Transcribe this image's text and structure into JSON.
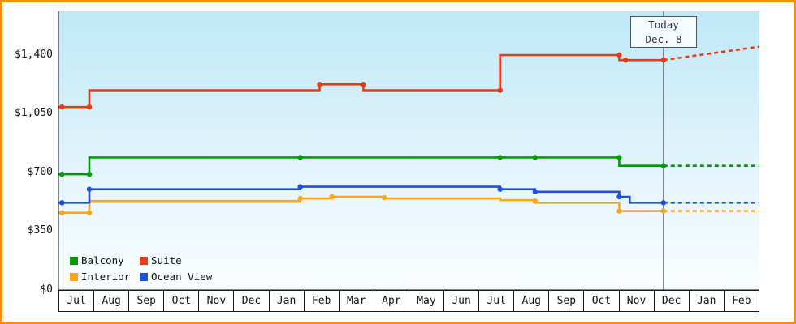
{
  "frame": {
    "border_color": "#ff8c00"
  },
  "today": {
    "line1": "Today",
    "line2": "Dec. 8"
  },
  "legend": {
    "position": "bottom-left",
    "items": [
      {
        "label": "Balcony",
        "color": "#009a00"
      },
      {
        "label": "Suite",
        "color": "#e63b17"
      },
      {
        "label": "Interior",
        "color": "#ffa41c"
      },
      {
        "label": "Ocean View",
        "color": "#1e4fe0"
      }
    ]
  },
  "chart_data": {
    "type": "line",
    "title": "",
    "xlabel": "",
    "ylabel": "",
    "grid": "off",
    "x_months": [
      "Jul",
      "Aug",
      "Sep",
      "Oct",
      "Nov",
      "Dec",
      "Jan",
      "Feb",
      "Mar",
      "Apr",
      "May",
      "Jun",
      "Jul",
      "Aug",
      "Sep",
      "Oct",
      "Nov",
      "Dec",
      "Jan",
      "Feb"
    ],
    "yticks": [
      0,
      350,
      700,
      1050,
      1400
    ],
    "ytick_labels": [
      "$0",
      "$350",
      "$700",
      "$1,050",
      "$1,400"
    ],
    "ylim": [
      0,
      1680
    ],
    "today_x": 17.26,
    "series": [
      {
        "name": "Balcony",
        "color": "#009a00",
        "solid": [
          [
            0,
            690
          ],
          [
            0.88,
            690
          ],
          [
            0.88,
            790
          ],
          [
            16.0,
            790
          ],
          [
            16.0,
            740
          ],
          [
            17.26,
            740
          ]
        ],
        "dashed": [
          [
            17.26,
            740
          ],
          [
            20,
            740
          ]
        ],
        "markers": [
          [
            0.1,
            690
          ],
          [
            0.88,
            690
          ],
          [
            6.9,
            790
          ],
          [
            12.6,
            790
          ],
          [
            13.6,
            790
          ],
          [
            16.0,
            790
          ],
          [
            17.26,
            740
          ]
        ]
      },
      {
        "name": "Suite",
        "color": "#e63b17",
        "solid": [
          [
            0,
            1090
          ],
          [
            0.88,
            1090
          ],
          [
            0.88,
            1190
          ],
          [
            7.45,
            1190
          ],
          [
            7.45,
            1225
          ],
          [
            8.7,
            1225
          ],
          [
            8.7,
            1190
          ],
          [
            12.6,
            1190
          ],
          [
            12.6,
            1400
          ],
          [
            16.0,
            1400
          ],
          [
            16.0,
            1370
          ],
          [
            17.26,
            1370
          ]
        ],
        "dashed": [
          [
            17.26,
            1370
          ],
          [
            20,
            1450
          ]
        ],
        "markers": [
          [
            0.1,
            1090
          ],
          [
            0.88,
            1090
          ],
          [
            7.45,
            1225
          ],
          [
            8.7,
            1225
          ],
          [
            12.6,
            1190
          ],
          [
            16.0,
            1400
          ],
          [
            16.18,
            1370
          ],
          [
            17.26,
            1370
          ]
        ]
      },
      {
        "name": "Interior",
        "color": "#ffa41c",
        "solid": [
          [
            0,
            460
          ],
          [
            0.88,
            460
          ],
          [
            0.88,
            530
          ],
          [
            6.9,
            530
          ],
          [
            6.9,
            545
          ],
          [
            7.8,
            545
          ],
          [
            7.8,
            555
          ],
          [
            9.3,
            555
          ],
          [
            9.3,
            545
          ],
          [
            12.6,
            545
          ],
          [
            12.6,
            535
          ],
          [
            13.6,
            535
          ],
          [
            13.6,
            520
          ],
          [
            16.0,
            520
          ],
          [
            16.0,
            470
          ],
          [
            17.26,
            470
          ]
        ],
        "dashed": [
          [
            17.26,
            470
          ],
          [
            20,
            470
          ]
        ],
        "markers": [
          [
            0.1,
            460
          ],
          [
            0.88,
            460
          ],
          [
            6.9,
            545
          ],
          [
            7.8,
            555
          ],
          [
            9.3,
            550
          ],
          [
            13.6,
            530
          ],
          [
            16.0,
            470
          ],
          [
            17.26,
            470
          ]
        ]
      },
      {
        "name": "Ocean View",
        "color": "#1e4fe0",
        "solid": [
          [
            0,
            520
          ],
          [
            0.88,
            520
          ],
          [
            0.88,
            600
          ],
          [
            6.9,
            600
          ],
          [
            6.9,
            615
          ],
          [
            12.6,
            615
          ],
          [
            12.6,
            600
          ],
          [
            13.6,
            600
          ],
          [
            13.6,
            585
          ],
          [
            16.0,
            585
          ],
          [
            16.0,
            555
          ],
          [
            16.3,
            555
          ],
          [
            16.3,
            520
          ],
          [
            17.26,
            520
          ]
        ],
        "dashed": [
          [
            17.26,
            520
          ],
          [
            20,
            520
          ]
        ],
        "markers": [
          [
            0.1,
            520
          ],
          [
            0.88,
            600
          ],
          [
            6.9,
            615
          ],
          [
            12.6,
            600
          ],
          [
            13.6,
            585
          ],
          [
            16.0,
            555
          ],
          [
            17.26,
            520
          ]
        ]
      }
    ]
  }
}
